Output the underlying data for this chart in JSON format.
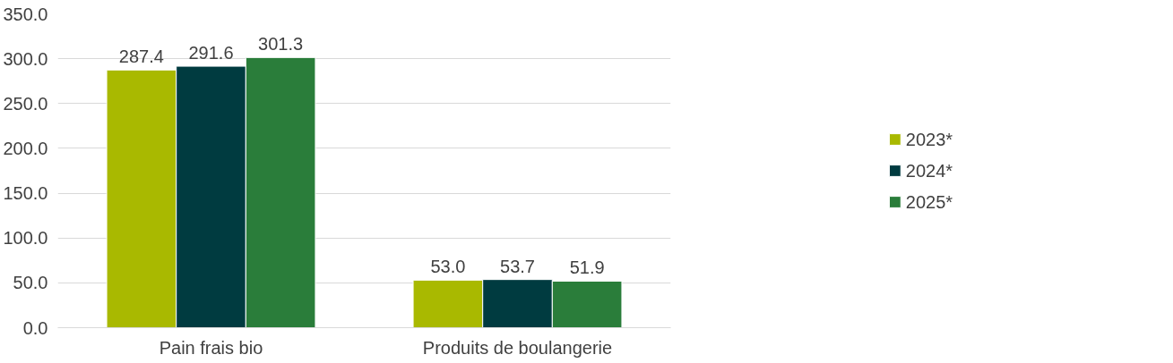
{
  "chart_data": {
    "type": "bar",
    "categories": [
      "Pain frais bio",
      "Produits de boulangerie"
    ],
    "series": [
      {
        "name": "2023*",
        "color": "#a9b900",
        "values": [
          287.4,
          53.0
        ]
      },
      {
        "name": "2024*",
        "color": "#003b40",
        "values": [
          291.6,
          53.7
        ]
      },
      {
        "name": "2025*",
        "color": "#2a7d3a",
        "values": [
          301.3,
          51.9
        ]
      }
    ],
    "value_labels": [
      [
        "287.4",
        "53.0"
      ],
      [
        "291.6",
        "53.7"
      ],
      [
        "301.3",
        "51.9"
      ]
    ],
    "ylim": [
      0,
      350
    ],
    "yticks": [
      {
        "value": 0,
        "label": "0.0"
      },
      {
        "value": 50,
        "label": "50.0"
      },
      {
        "value": 100,
        "label": "100.0"
      },
      {
        "value": 150,
        "label": "150.0"
      },
      {
        "value": 200,
        "label": "200.0"
      },
      {
        "value": 250,
        "label": "250.0"
      },
      {
        "value": 300,
        "label": "300.0"
      },
      {
        "value": 350,
        "label": "350.0"
      }
    ],
    "grid": "y",
    "legend": "right"
  }
}
